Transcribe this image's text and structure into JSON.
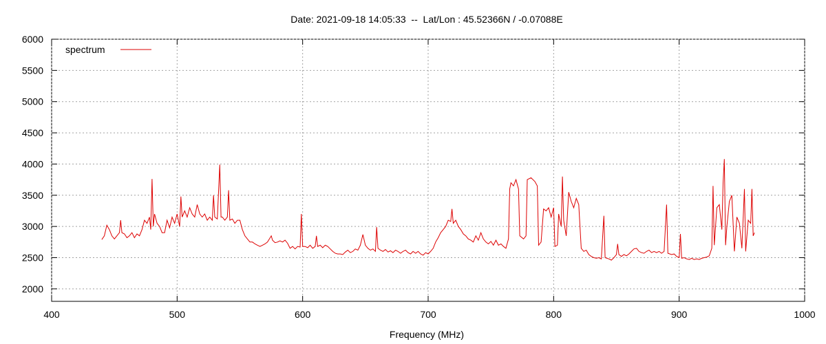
{
  "chart_data": {
    "type": "line",
    "title": "Date: 2021-09-18 14:05:33  --  Lat/Lon : 45.52366N / -0.07088E",
    "xlabel": "Frequency (MHz)",
    "xlim": [
      400,
      1000
    ],
    "xticks": [
      400,
      500,
      600,
      700,
      800,
      900,
      1000
    ],
    "ylim": [
      1800,
      6000
    ],
    "yticks": [
      2000,
      2500,
      3000,
      3500,
      4000,
      4500,
      5000,
      5500,
      6000
    ],
    "grid": true,
    "legend": "top-left",
    "x": [
      440,
      442,
      444,
      446,
      448,
      450,
      452,
      454,
      455,
      456,
      458,
      460,
      462,
      464,
      466,
      468,
      470,
      472,
      474,
      476,
      478,
      479,
      480,
      481,
      482,
      484,
      486,
      488,
      490,
      492,
      494,
      496,
      498,
      500,
      502,
      503,
      504,
      506,
      508,
      510,
      512,
      514,
      516,
      518,
      520,
      522,
      524,
      526,
      528,
      529,
      530,
      532,
      534,
      535,
      536,
      538,
      540,
      541,
      542,
      544,
      546,
      548,
      550,
      552,
      554,
      556,
      558,
      560,
      562,
      564,
      566,
      568,
      570,
      572,
      575,
      576,
      578,
      580,
      582,
      584,
      586,
      588,
      590,
      592,
      594,
      596,
      598,
      599,
      600,
      602,
      604,
      606,
      608,
      610,
      611,
      612,
      614,
      616,
      618,
      620,
      622,
      624,
      626,
      628,
      630,
      632,
      634,
      636,
      638,
      640,
      642,
      644,
      646,
      648,
      650,
      652,
      654,
      656,
      658,
      659,
      660,
      662,
      664,
      666,
      668,
      670,
      672,
      674,
      676,
      678,
      680,
      682,
      684,
      686,
      688,
      690,
      692,
      694,
      696,
      698,
      700,
      702,
      704,
      706,
      708,
      710,
      712,
      714,
      716,
      718,
      719,
      720,
      722,
      724,
      726,
      728,
      730,
      732,
      734,
      736,
      738,
      740,
      742,
      744,
      746,
      748,
      750,
      752,
      754,
      756,
      758,
      760,
      762,
      764,
      765,
      766,
      768,
      770,
      772,
      773,
      776,
      778,
      779,
      782,
      785,
      787,
      788,
      790,
      792,
      794,
      796,
      798,
      800,
      801,
      803,
      804,
      806,
      807,
      808,
      810,
      812,
      814,
      816,
      818,
      820,
      822,
      824,
      826,
      828,
      830,
      832,
      834,
      836,
      838,
      840,
      841,
      844,
      846,
      848,
      850,
      851,
      852,
      854,
      856,
      858,
      860,
      862,
      864,
      866,
      868,
      870,
      872,
      874,
      876,
      878,
      880,
      882,
      884,
      886,
      888,
      890,
      891,
      894,
      896,
      898,
      900,
      901,
      902,
      904,
      906,
      908,
      910,
      912,
      914,
      916,
      918,
      920,
      922,
      924,
      926,
      927,
      928,
      930,
      932,
      934,
      935,
      936,
      937,
      938,
      940,
      942,
      944,
      946,
      948,
      950,
      952,
      953,
      955,
      957,
      958,
      959,
      960
    ],
    "series": [
      {
        "name": "spectrum",
        "color": "#dd0000",
        "values": [
          2790,
          2850,
          3020,
          2950,
          2850,
          2800,
          2850,
          2900,
          3100,
          2900,
          2880,
          2820,
          2850,
          2900,
          2820,
          2880,
          2850,
          2950,
          3100,
          3050,
          3150,
          2950,
          3760,
          3000,
          3200,
          3050,
          3000,
          2900,
          2900,
          3100,
          2980,
          3150,
          3050,
          3200,
          3000,
          3480,
          3150,
          3250,
          3150,
          3300,
          3200,
          3150,
          3350,
          3200,
          3150,
          3200,
          3100,
          3150,
          3100,
          3500,
          3150,
          3120,
          3990,
          3150,
          3150,
          3100,
          3150,
          3580,
          3100,
          3120,
          3050,
          3100,
          3100,
          2950,
          2850,
          2800,
          2750,
          2750,
          2720,
          2700,
          2680,
          2700,
          2720,
          2750,
          2850,
          2780,
          2740,
          2750,
          2770,
          2750,
          2780,
          2730,
          2650,
          2680,
          2640,
          2680,
          2670,
          3200,
          2680,
          2680,
          2660,
          2700,
          2650,
          2680,
          2850,
          2680,
          2700,
          2660,
          2700,
          2680,
          2640,
          2600,
          2570,
          2560,
          2560,
          2550,
          2590,
          2620,
          2580,
          2600,
          2640,
          2620,
          2700,
          2870,
          2700,
          2650,
          2620,
          2640,
          2600,
          2990,
          2650,
          2620,
          2600,
          2630,
          2590,
          2610,
          2580,
          2620,
          2600,
          2570,
          2600,
          2620,
          2580,
          2560,
          2600,
          2570,
          2600,
          2560,
          2540,
          2580,
          2560,
          2600,
          2650,
          2750,
          2820,
          2900,
          2950,
          3000,
          3100,
          3080,
          3280,
          3050,
          3100,
          3000,
          2950,
          2880,
          2850,
          2800,
          2780,
          2750,
          2850,
          2780,
          2900,
          2800,
          2750,
          2720,
          2760,
          2700,
          2780,
          2700,
          2720,
          2680,
          2650,
          2800,
          3600,
          3700,
          3650,
          3750,
          3600,
          2850,
          2800,
          2850,
          3750,
          3780,
          3720,
          3650,
          2700,
          2750,
          3280,
          3250,
          3300,
          3150,
          3300,
          2680,
          2700,
          3200,
          3000,
          3800,
          3100,
          2850,
          3550,
          3400,
          3300,
          3450,
          3350,
          2650,
          2600,
          2620,
          2550,
          2520,
          2500,
          2490,
          2500,
          2480,
          3170,
          2500,
          2480,
          2460,
          2500,
          2550,
          2720,
          2550,
          2520,
          2550,
          2530,
          2560,
          2600,
          2640,
          2650,
          2600,
          2580,
          2570,
          2600,
          2620,
          2580,
          2600,
          2580,
          2600,
          2570,
          2600,
          3350,
          2570,
          2550,
          2560,
          2520,
          2500,
          2880,
          2490,
          2500,
          2480,
          2470,
          2490,
          2470,
          2480,
          2470,
          2490,
          2500,
          2510,
          2530,
          2650,
          3650,
          2700,
          3300,
          3350,
          2950,
          3700,
          4080,
          2700,
          3000,
          3400,
          3500,
          2600,
          3150,
          3050,
          2650,
          3600,
          2600,
          3100,
          3050,
          3600,
          2850,
          2900
        ]
      }
    ]
  }
}
